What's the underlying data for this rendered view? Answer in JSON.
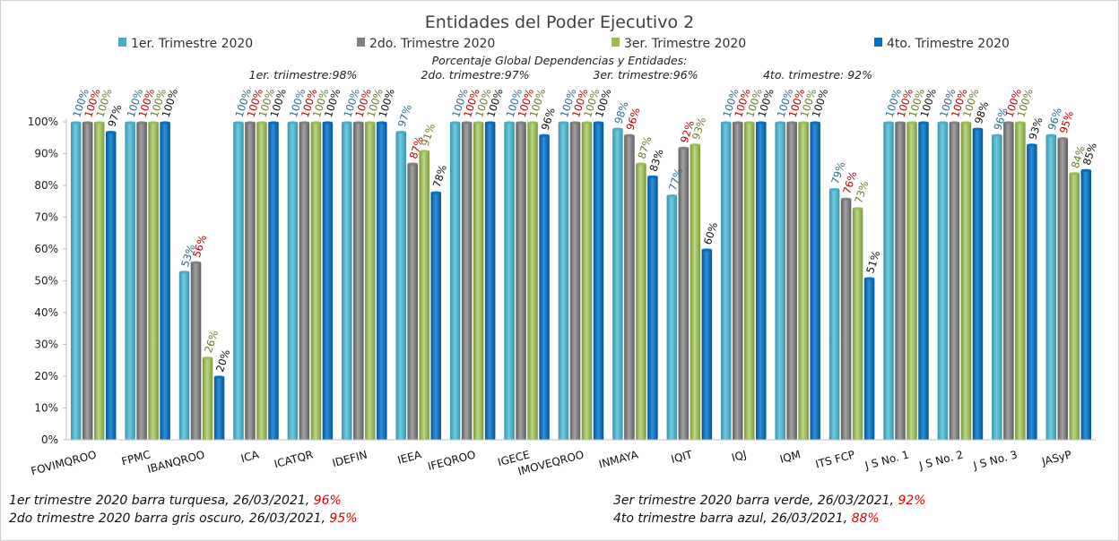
{
  "chart_data": {
    "type": "bar",
    "title": "Entidades del Poder Ejecutivo 2",
    "subtitle": "Porcentaje Global  Dependencias y Entidades:",
    "quarter_notes": [
      "1er. triimestre:98%",
      "2do. trimestre:97%",
      "3er. trimestre:96%",
      "4to. trimestre: 92%"
    ],
    "categories": [
      "FOVIMQROO",
      "FPMC",
      "IBANQROO",
      "ICA",
      "ICATQR",
      "IDEFIN",
      "IEEA",
      "IFEQROO",
      "IGECE",
      "IMOVEQROO",
      "INMAYA",
      "IQIT",
      "IQJ",
      "IQM",
      "ITS FCP",
      "J S No. 1",
      "J S No. 2",
      "J S No. 3",
      "JASyP"
    ],
    "series": [
      {
        "name": "1er. Trimestre 2020",
        "color": "#4bacc6",
        "label_color": "#2e6f8e",
        "values": [
          100,
          100,
          53,
          100,
          100,
          100,
          97,
          100,
          100,
          100,
          98,
          77,
          100,
          100,
          79,
          100,
          100,
          96,
          96
        ]
      },
      {
        "name": "2do. Trimestre 2020",
        "color": "#7f7f7f",
        "label_color": "#c00000",
        "values": [
          100,
          100,
          56,
          100,
          100,
          100,
          87,
          100,
          100,
          100,
          96,
          92,
          100,
          100,
          76,
          100,
          100,
          100,
          95
        ]
      },
      {
        "name": "3er. Trimestre 2020",
        "color": "#9bbb59",
        "label_color": "#6b7f2a",
        "values": [
          100,
          100,
          26,
          100,
          100,
          100,
          91,
          100,
          100,
          100,
          87,
          93,
          100,
          100,
          73,
          100,
          100,
          100,
          84
        ]
      },
      {
        "name": "4to. Trimestre 2020",
        "color": "#0070c0",
        "label_color": "#111111",
        "values": [
          97,
          100,
          20,
          100,
          100,
          100,
          78,
          100,
          96,
          100,
          83,
          60,
          100,
          100,
          51,
          100,
          98,
          93,
          85
        ]
      }
    ],
    "ylim": [
      0,
      100
    ],
    "yticks": [
      "0%",
      "10%",
      "20%",
      "30%",
      "40%",
      "50%",
      "60%",
      "70%",
      "80%",
      "90%",
      "100%"
    ],
    "legend_position": "top",
    "grid": false
  },
  "footer": {
    "left": [
      {
        "text": "1er trimestre  2020 barra turquesa,   26/03/2021,  ",
        "pct": "96%"
      },
      {
        "text": "2do trimestre  2020 barra gris oscuro,  26/03/2021,  ",
        "pct": "95%"
      }
    ],
    "right": [
      {
        "text": "3er trimestre  2020 barra verde,   26/03/2021,  ",
        "pct": "92%"
      },
      {
        "text": "4to trimestre barra azul, 26/03/2021, ",
        "pct": "88%"
      }
    ]
  }
}
